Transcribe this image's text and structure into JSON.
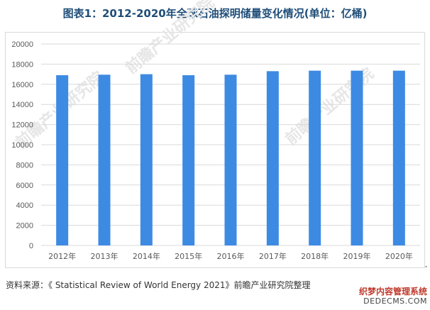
{
  "title": "图表1：2012-2020年全球石油探明储量变化情况(单位：亿桶)",
  "source": "资料来源：《 Statistical Review of World Energy 2021》前瞻产业研究院整理",
  "watermark": "前瞻产业研究院",
  "corner_logo": {
    "line1": "织梦内容管理系统",
    "line2": "DEDECMS.COM"
  },
  "colors": {
    "bar": "#3d8ae3",
    "grid": "#d9d9d9",
    "title": "#1f4e79"
  },
  "chart_data": {
    "type": "bar",
    "title": "图表1：2012-2020年全球石油探明储量变化情况(单位：亿桶)",
    "categories": [
      "2012年",
      "2013年",
      "2014年",
      "2015年",
      "2016年",
      "2017年",
      "2018年",
      "2019年",
      "2020年"
    ],
    "values": [
      16900,
      16950,
      17000,
      16900,
      16950,
      17300,
      17350,
      17350,
      17350
    ],
    "ylim": [
      0,
      20000
    ],
    "yticks": [
      0,
      2000,
      4000,
      6000,
      8000,
      10000,
      12000,
      14000,
      16000,
      18000,
      20000
    ],
    "grid": true,
    "legend": "none"
  }
}
